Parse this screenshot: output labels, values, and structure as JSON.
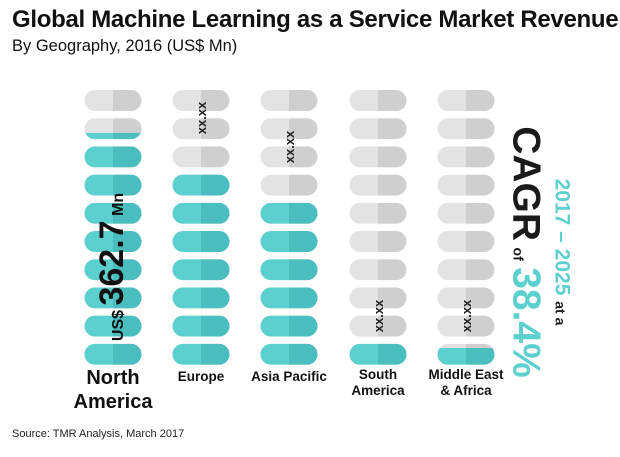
{
  "chart_data": {
    "type": "bar",
    "title": "Global Machine Learning as a Service Market Revenue",
    "subtitle": "By Geography, 2016 (US$ Mn)",
    "categories": [
      "North America",
      "Europe",
      "Asia Pacific",
      "South America",
      "Middle East & Africa"
    ],
    "category_label_lines": [
      [
        "North",
        "America"
      ],
      [
        "Europe"
      ],
      [
        "Asia Pacific"
      ],
      [
        "South",
        "America"
      ],
      [
        "Middle East",
        "& Africa"
      ]
    ],
    "filled_segments": [
      8.3,
      7,
      6,
      1,
      0.8
    ],
    "total_segments": 10,
    "value_labels": [
      "US$ 362.7 Mn",
      "xx.xx",
      "xx.xx",
      "xx.xx",
      "xx.xx"
    ],
    "highlight": {
      "currency": "US$",
      "value": "362.7",
      "unit": "Mn"
    },
    "colors": {
      "filled_left": "#5ccfcf",
      "filled_right": "#4abebe",
      "empty_left": "#e3e3e3",
      "empty_right": "#cfcfcf",
      "accent": "#5ccfcf",
      "text": "#111111"
    }
  },
  "cagr": {
    "period": "2017 – 2025",
    "at_a": "at a",
    "label": "CAGR",
    "of": "of",
    "value": "38.4%"
  },
  "source": "Source: TMR Analysis, March 2017"
}
